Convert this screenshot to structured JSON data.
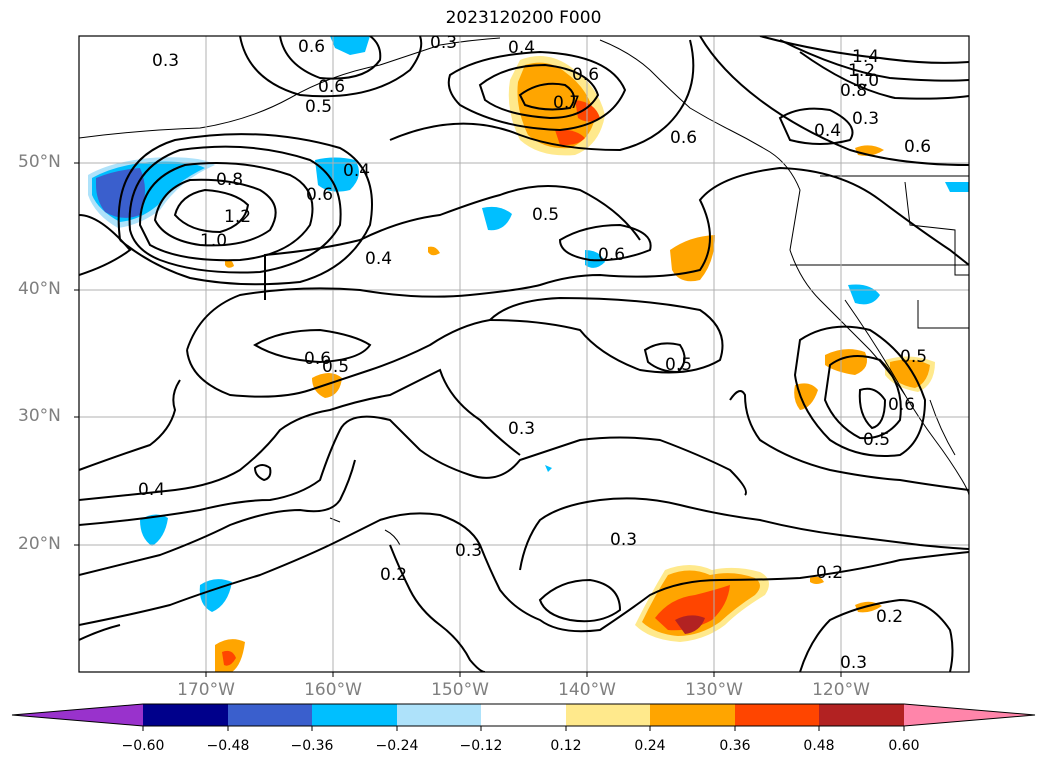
{
  "title": "2023120200 F000",
  "lat_labels": [
    "50°N",
    "40°N",
    "30°N",
    "20°N"
  ],
  "lon_labels": [
    "170°W",
    "160°W",
    "150°W",
    "140°W",
    "130°W",
    "120°W"
  ],
  "contour_labels": [
    "0.3",
    "0.4",
    "0.3",
    "0.6",
    "0.5",
    "0.6",
    "0.7",
    "0.6",
    "1.4",
    "1.2",
    "1.0",
    "0.8",
    "0.3",
    "0.4",
    "0.6",
    "0.8",
    "0.6",
    "1.0",
    "1.2",
    "0.6",
    "0.4",
    "0.5",
    "0.6",
    "0.4",
    "0.6",
    "0.5",
    "0.5",
    "0.5",
    "0.5",
    "0.3",
    "0.4",
    "0.3",
    "0.2",
    "0.3",
    "0.2",
    "0.2",
    "0.3",
    "0.6"
  ],
  "colorbar": {
    "ticks": [
      "−0.60",
      "−0.48",
      "−0.36",
      "−0.24",
      "−0.12",
      "0.12",
      "0.24",
      "0.36",
      "0.48",
      "0.60"
    ],
    "colors": [
      "#9932cc",
      "#00008b",
      "#3a5fcd",
      "#00bfff",
      "#aee2fa",
      "#ffffff",
      "#ffe98c",
      "#ffa500",
      "#ff4500",
      "#b22222",
      "#ff85aa"
    ]
  }
}
